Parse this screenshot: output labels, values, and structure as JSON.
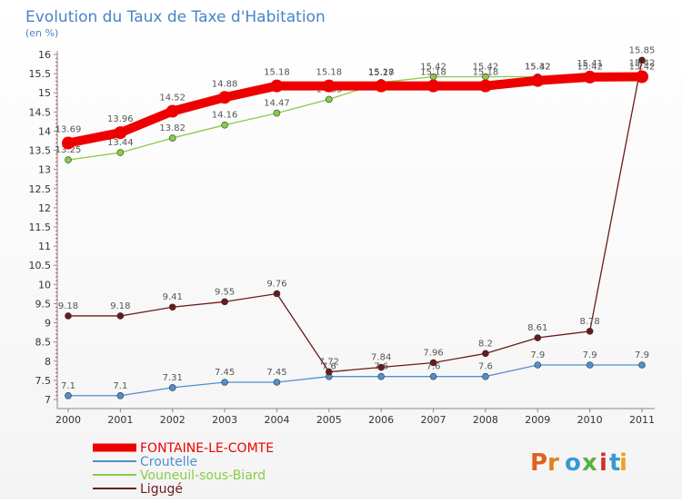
{
  "chart_data": {
    "type": "line",
    "title": "Evolution du Taux de Taxe d'Habitation",
    "subtitle": "(en %)",
    "xlabel": "",
    "ylabel": "",
    "x": [
      "2000",
      "2001",
      "2002",
      "2003",
      "2004",
      "2005",
      "2006",
      "2007",
      "2008",
      "2009",
      "2010",
      "2011"
    ],
    "yticks": [
      "7",
      "7.5",
      "8",
      "8.5",
      "9",
      "9.5",
      "10",
      "10.5",
      "11",
      "11.5",
      "12",
      "12.5",
      "13",
      "13.5",
      "14",
      "14.5",
      "15",
      "15.5",
      "16"
    ],
    "ylim": [
      7,
      16
    ],
    "grid": false,
    "legend": "bottom-left",
    "series": [
      {
        "name": "FONTAINE-LE-COMTE",
        "color": "#ee0000",
        "values": [
          13.69,
          13.96,
          14.52,
          14.88,
          15.18,
          15.18,
          15.18,
          15.18,
          15.18,
          15.32,
          15.41,
          15.42
        ],
        "labels": [
          "13.69",
          "13.96",
          "14.52",
          "14.88",
          "15.18",
          "15.18",
          "15.18",
          "15.18",
          "15.18",
          "15.32",
          "15.41",
          "15.42"
        ]
      },
      {
        "name": "Croutelle",
        "color": "#4f8fcf",
        "values": [
          7.1,
          7.1,
          7.31,
          7.45,
          7.45,
          7.6,
          7.6,
          7.6,
          7.6,
          7.9,
          7.9,
          7.9
        ],
        "labels": [
          "7.1",
          "7.1",
          "7.31",
          "7.45",
          "7.45",
          "7.6",
          "7.6",
          "7.6",
          "7.6",
          "7.9",
          "7.9",
          "7.9"
        ]
      },
      {
        "name": "Vouneuil-sous-Biard",
        "color": "#88cc44",
        "values": [
          13.25,
          13.44,
          13.82,
          14.16,
          14.47,
          14.83,
          15.27,
          15.42,
          15.42,
          15.42,
          15.42,
          15.42
        ],
        "labels": [
          "13.25",
          "13.44",
          "13.82",
          "14.16",
          "14.47",
          "14.83",
          "15.27",
          "15.42",
          "15.42",
          "15.42",
          "15.42",
          "15.42"
        ]
      },
      {
        "name": "Ligugé",
        "color": "#6b1a1a",
        "values": [
          9.18,
          9.18,
          9.41,
          9.55,
          9.76,
          7.72,
          7.84,
          7.96,
          8.2,
          8.61,
          8.78,
          15.85
        ],
        "labels": [
          "9.18",
          "9.18",
          "9.41",
          "9.55",
          "9.76",
          "7.72",
          "7.84",
          "7.96",
          "8.2",
          "8.61",
          "8.78",
          "15.85"
        ]
      }
    ]
  },
  "logo": {
    "text": "Proxiti"
  }
}
